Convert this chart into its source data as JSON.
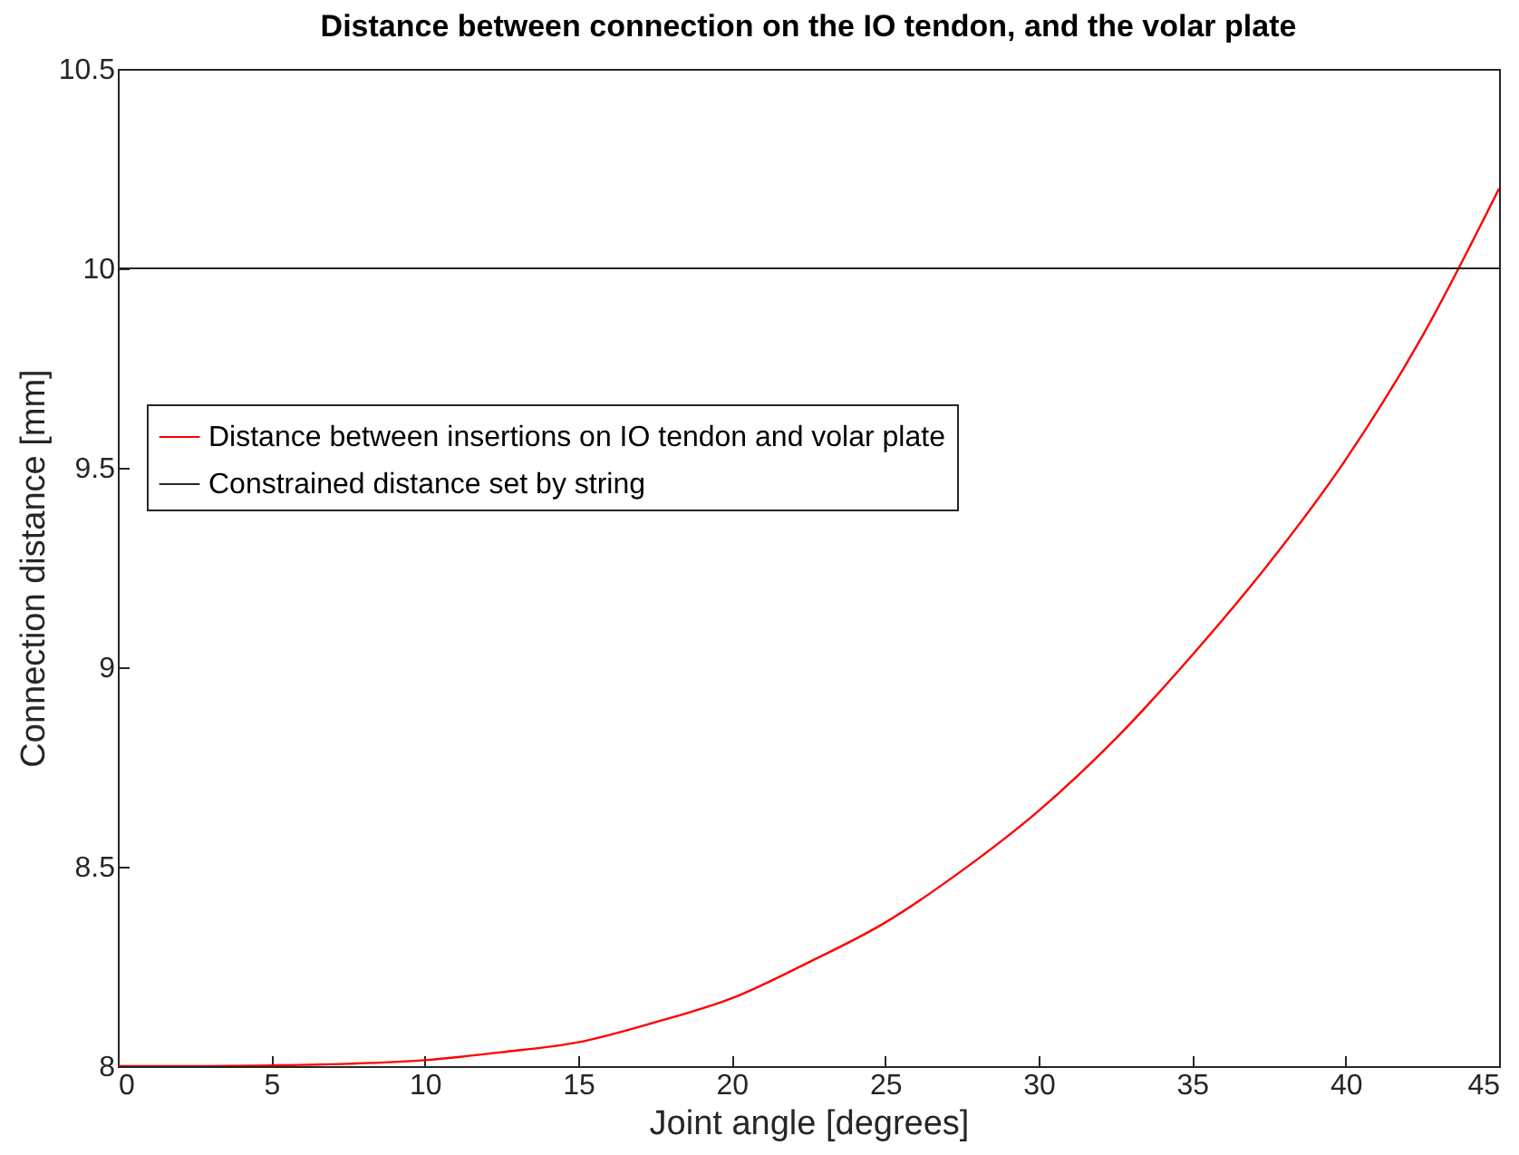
{
  "chart_data": {
    "type": "line",
    "title": "Distance between connection on the IO tendon, and the volar plate",
    "xlabel": "Joint angle [degrees]",
    "ylabel": "Connection distance [mm]",
    "x": [
      0,
      2.5,
      5,
      7.5,
      10,
      12.5,
      15,
      17.5,
      20,
      22.5,
      25,
      27.5,
      30,
      32.5,
      35,
      37.5,
      40,
      42.5,
      45
    ],
    "series": [
      {
        "name": "Distance between insertions on IO tendon and volar plate",
        "color": "#ff0000",
        "values": [
          8,
          8,
          8.002,
          8.006,
          8.015,
          8.035,
          8.06,
          8.11,
          8.17,
          8.26,
          8.36,
          8.49,
          8.64,
          8.82,
          9.03,
          9.26,
          9.52,
          9.83,
          10.2
        ]
      }
    ],
    "ref_lines": [
      {
        "axis": "y",
        "value": 10,
        "label": "Constrained distance set by string",
        "color": "#262626"
      }
    ],
    "xlim": [
      0,
      45
    ],
    "xticks": [
      0,
      5,
      10,
      15,
      20,
      25,
      30,
      35,
      40,
      45
    ],
    "ylim": [
      8,
      10.5
    ],
    "yticks": [
      8,
      8.5,
      9,
      9.5,
      10,
      10.5
    ],
    "grid": false,
    "legend": "left"
  }
}
